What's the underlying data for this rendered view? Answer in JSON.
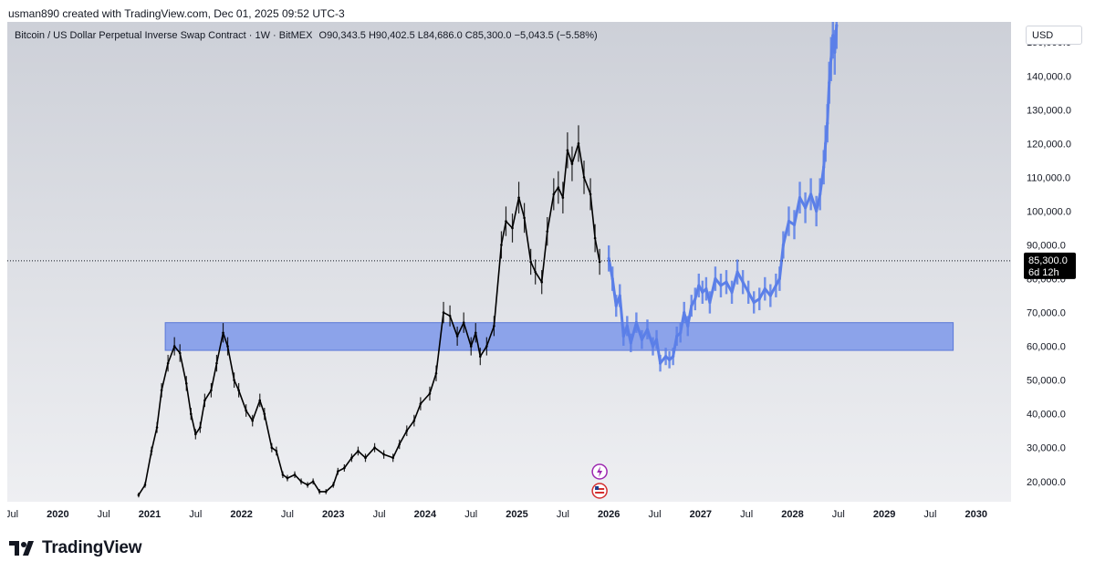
{
  "attribution": "usman890 created with TradingView.com, Dec 01, 2025 09:52 UTC-3",
  "legend": {
    "symbol": "Bitcoin / US Dollar Perpetual Inverse Swap Contract · 1W · BitMEX",
    "ohlc": "O90,343.5  H90,402.5  L84,686.0  C85,300.0  −5,043.5 (−5.58%)"
  },
  "currency_button": "USD",
  "current_price": {
    "value": 85300,
    "label": "85,300.0",
    "countdown": "6d 12h"
  },
  "brand": "TradingView",
  "colors": {
    "background_top": "#cdd0d8",
    "background_bottom": "#edeef1",
    "candles": "#000000",
    "projection": "#5b7fe8",
    "zone_fill": "#7d98ea",
    "price_badge": "#000000"
  },
  "icons": [
    "lightning-event-icon",
    "us-flag-event-icon"
  ],
  "chart_data": {
    "type": "line",
    "y_axis_ticks": [
      "20,000.0",
      "30,000.0",
      "40,000.0",
      "50,000.0",
      "60,000.0",
      "70,000.0",
      "80,000.0",
      "90,000.0",
      "100,000.0",
      "110,000.0",
      "120,000.0",
      "130,000.0",
      "140,000.0",
      "150,000.0"
    ],
    "x_axis_ticks": [
      "Jul",
      "2020",
      "Jul",
      "2021",
      "Jul",
      "2022",
      "Jul",
      "2023",
      "Jul",
      "2024",
      "Jul",
      "2025",
      "Jul",
      "2026",
      "Jul",
      "2027",
      "Jul",
      "2028",
      "Jul",
      "2029",
      "Jul",
      "2030"
    ],
    "x_tick_years": [
      2019.5,
      2020,
      2020.5,
      2021,
      2021.5,
      2022,
      2022.5,
      2023,
      2023.5,
      2024,
      2024.5,
      2025,
      2025.5,
      2026,
      2026.5,
      2027,
      2027.5,
      2028,
      2028.5,
      2029,
      2029.5,
      2030
    ],
    "ylim": [
      14000,
      156000
    ],
    "xlim": [
      2019.45,
      2030.38
    ],
    "highlight_zone": {
      "y_min": 58800,
      "y_max": 67000,
      "x_start": 2021.17,
      "x_end": 2029.75
    },
    "series": [
      {
        "x": [
          2020.88,
          2020.95,
          2021.02,
          2021.08,
          2021.13,
          2021.2,
          2021.27,
          2021.33,
          2021.4,
          2021.45,
          2021.5,
          2021.55,
          2021.6,
          2021.67,
          2021.73,
          2021.8,
          2021.85,
          2021.92,
          2021.97,
          2022.05,
          2022.12,
          2022.2,
          2022.25,
          2022.33,
          2022.38,
          2022.45,
          2022.5,
          2022.58,
          2022.65,
          2022.72,
          2022.78,
          2022.85,
          2022.92,
          2023.0,
          2023.05,
          2023.12,
          2023.2,
          2023.27,
          2023.35,
          2023.45,
          2023.55,
          2023.65,
          2023.72,
          2023.8,
          2023.88,
          2023.95,
          2024.05,
          2024.12,
          2024.2,
          2024.27,
          2024.35,
          2024.42,
          2024.5,
          2024.55,
          2024.6,
          2024.67,
          2024.75,
          2024.83,
          2024.88,
          2024.95,
          2025.02,
          2025.08,
          2025.15,
          2025.2,
          2025.27,
          2025.33,
          2025.4,
          2025.45,
          2025.5,
          2025.55,
          2025.6,
          2025.67,
          2025.73,
          2025.8,
          2025.85,
          2025.9
        ],
        "y": [
          16000,
          19000,
          29000,
          36000,
          47000,
          55000,
          60000,
          58000,
          49000,
          40000,
          34000,
          36000,
          44000,
          47000,
          55000,
          64000,
          60000,
          50000,
          47000,
          41000,
          38000,
          44000,
          40000,
          30000,
          29000,
          22000,
          21000,
          22000,
          20000,
          19000,
          20000,
          17000,
          17000,
          19000,
          23000,
          24000,
          27000,
          29000,
          27000,
          30000,
          28000,
          27000,
          31000,
          35000,
          38000,
          43000,
          46000,
          52000,
          70000,
          69000,
          63000,
          67000,
          60000,
          64000,
          57000,
          60000,
          66000,
          90000,
          97000,
          95000,
          104000,
          98000,
          85000,
          82000,
          79000,
          94000,
          105000,
          107000,
          104000,
          118000,
          114000,
          120000,
          110000,
          105000,
          92000,
          85000
        ]
      },
      {
        "x": [
          2026.0,
          2026.04,
          2026.08,
          2026.12,
          2026.16,
          2026.2,
          2026.24,
          2026.3,
          2026.36,
          2026.42,
          2026.48,
          2026.52,
          2026.56,
          2026.62,
          2026.66,
          2026.7,
          2026.74,
          2026.78,
          2026.82,
          2026.86,
          2026.9,
          2026.94,
          2026.98,
          2027.02,
          2027.06,
          2027.1,
          2027.16,
          2027.22,
          2027.28,
          2027.34,
          2027.4,
          2027.46,
          2027.52,
          2027.58,
          2027.64,
          2027.7,
          2027.76,
          2027.82,
          2027.86,
          2027.9,
          2027.96,
          2028.02,
          2028.08,
          2028.14,
          2028.2,
          2028.26,
          2028.3,
          2028.34,
          2028.36,
          2028.38,
          2028.4,
          2028.42,
          2028.44,
          2028.46,
          2028.48
        ],
        "y": [
          86000,
          80000,
          72000,
          75000,
          63000,
          66000,
          61000,
          67000,
          62000,
          65000,
          60000,
          62000,
          55000,
          57000,
          56000,
          57000,
          63000,
          64000,
          70000,
          66000,
          72000,
          74000,
          78000,
          76000,
          77000,
          73000,
          80000,
          78000,
          79000,
          76000,
          82000,
          79000,
          76000,
          73000,
          74000,
          77000,
          75000,
          78000,
          80000,
          90000,
          97000,
          96000,
          104000,
          101000,
          105000,
          100000,
          105000,
          113000,
          120000,
          126000,
          138000,
          145000,
          152000,
          147000,
          155000
        ]
      }
    ]
  }
}
